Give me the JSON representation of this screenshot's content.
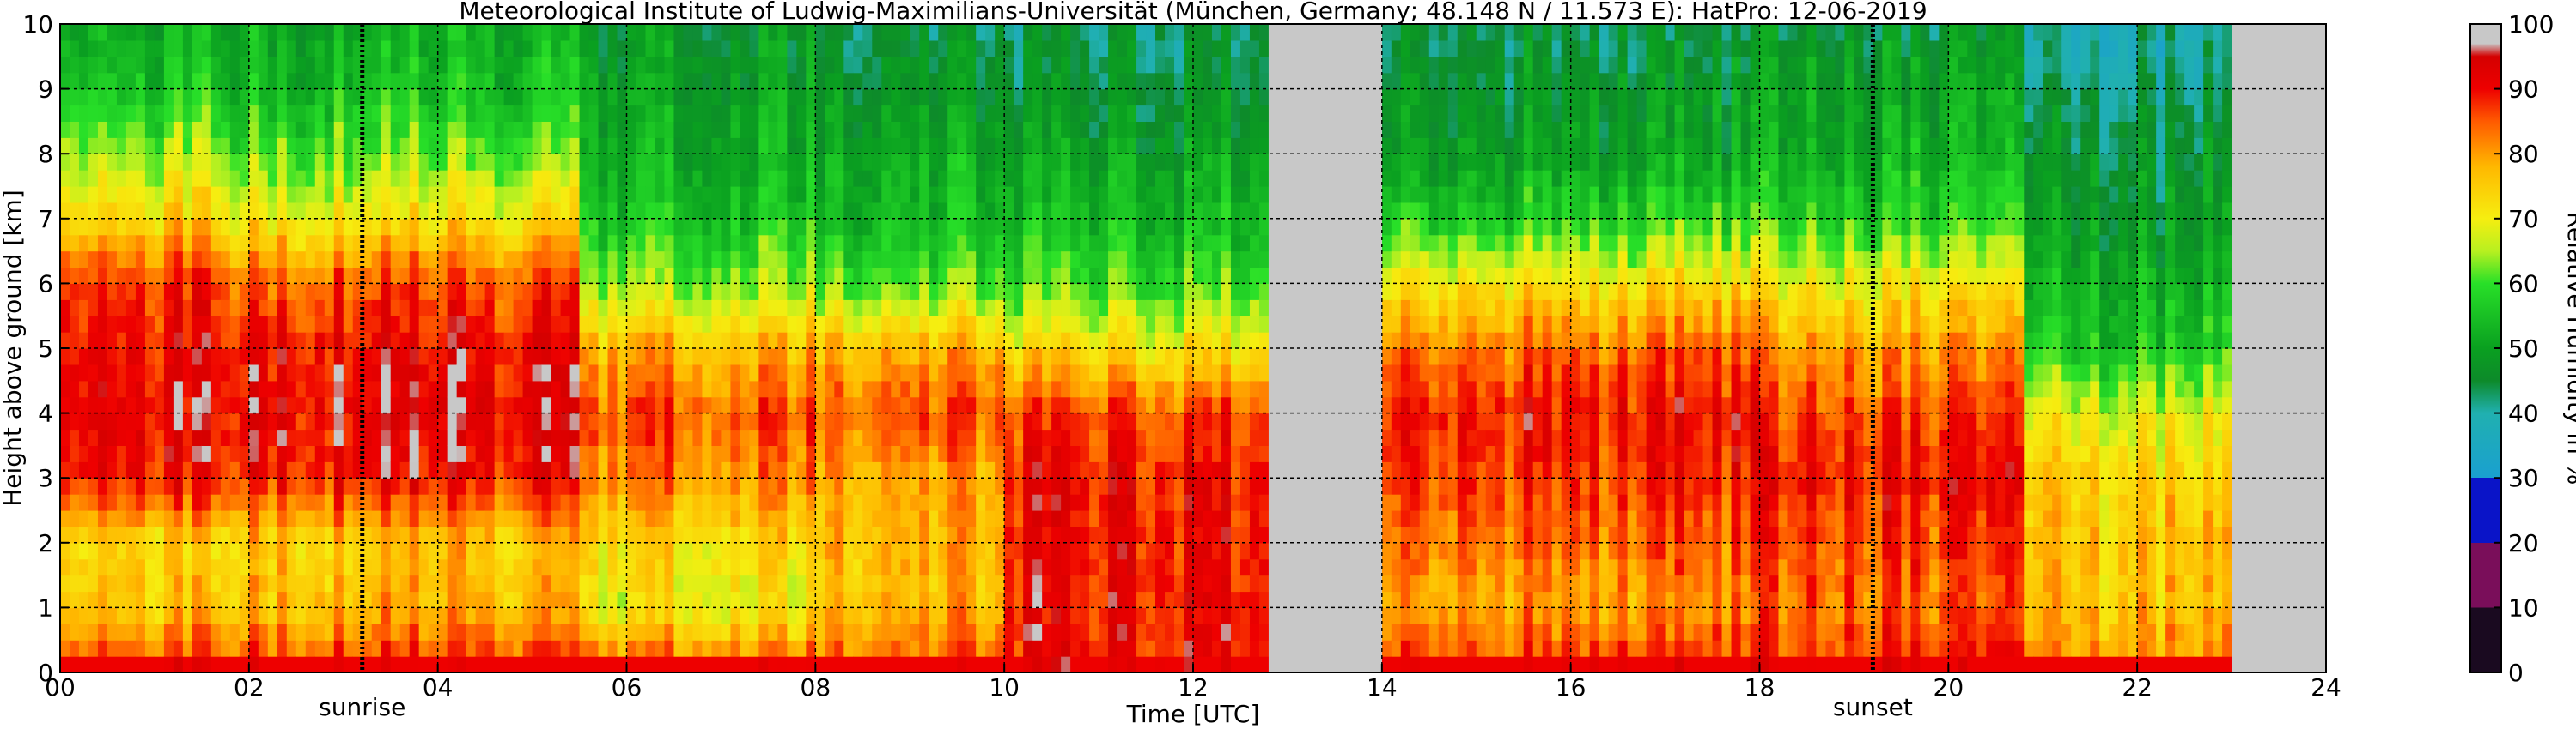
{
  "chart_data": {
    "type": "heatmap",
    "title": "Meteorological Institute of Ludwig-Maximilians-Universität (München, Germany; 48.148 N / 11.573 E):    HatPro: 12-06-2019",
    "xlabel": "Time [UTC]",
    "ylabel": "Height above ground [km]",
    "xlim": [
      0,
      24
    ],
    "ylim": [
      0,
      10
    ],
    "x_ticks": [
      "00",
      "02",
      "04",
      "06",
      "08",
      "10",
      "12",
      "14",
      "16",
      "18",
      "20",
      "22",
      "24"
    ],
    "y_ticks": [
      "0",
      "1",
      "2",
      "3",
      "4",
      "5",
      "6",
      "7",
      "8",
      "9",
      "10"
    ],
    "grid": true,
    "missing_data_intervals_utc": [
      [
        12.8,
        14.0
      ],
      [
        23.0,
        24.0
      ]
    ],
    "annotations": [
      {
        "text": "sunrise",
        "x": 3.2
      },
      {
        "text": "sunset",
        "x": 19.2
      }
    ],
    "colorbar": {
      "label": "Relative Humidity in %",
      "ticks": [
        "0",
        "10",
        "20",
        "30",
        "40",
        "50",
        "60",
        "70",
        "80",
        "90",
        "100"
      ],
      "range": [
        0,
        100
      ]
    },
    "rh_profile_by_height_km": {
      "heights_km": [
        0.1,
        1,
        2,
        3,
        4,
        5,
        6,
        7,
        8,
        9,
        10
      ],
      "segments": [
        {
          "x_range": [
            0,
            1.8
          ],
          "rh": [
            88,
            76,
            74,
            90,
            92,
            90,
            88,
            74,
            65,
            56,
            52
          ]
        },
        {
          "x_range": [
            1.8,
            5.5
          ],
          "rh": [
            88,
            78,
            76,
            90,
            93,
            91,
            86,
            72,
            62,
            55,
            52
          ]
        },
        {
          "x_range": [
            5.5,
            8.0
          ],
          "rh": [
            86,
            70,
            74,
            82,
            86,
            78,
            64,
            56,
            52,
            50,
            48
          ]
        },
        {
          "x_range": [
            8.0,
            10.0
          ],
          "rh": [
            86,
            78,
            78,
            80,
            86,
            78,
            62,
            54,
            52,
            48,
            45
          ]
        },
        {
          "x_range": [
            10.0,
            12.8
          ],
          "rh": [
            90,
            90,
            90,
            90,
            86,
            72,
            60,
            54,
            50,
            46,
            44
          ]
        },
        {
          "x_range": [
            14.0,
            18.0
          ],
          "rh": [
            88,
            80,
            84,
            88,
            90,
            84,
            72,
            58,
            50,
            48,
            44
          ]
        },
        {
          "x_range": [
            18.0,
            20.8
          ],
          "rh": [
            88,
            84,
            86,
            90,
            86,
            80,
            70,
            58,
            52,
            50,
            46
          ]
        },
        {
          "x_range": [
            20.8,
            23.0
          ],
          "rh": [
            82,
            76,
            76,
            74,
            68,
            56,
            52,
            48,
            46,
            42,
            38
          ]
        }
      ]
    }
  }
}
